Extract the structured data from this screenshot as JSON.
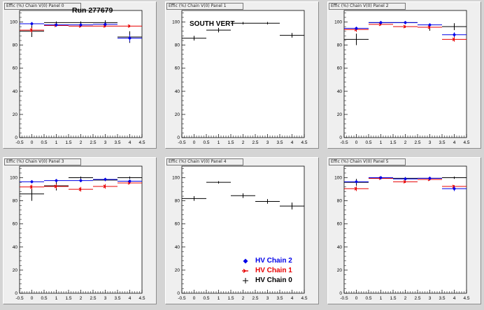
{
  "canvas_title": "Run 277679",
  "colors": {
    "chain2": "#0000e8",
    "chain1": "#e80000",
    "chain0": "#000000",
    "pad_bg": "#efefef",
    "canvas_bg": "#d4d4d4"
  },
  "legend": [
    {
      "label": "HV Chain 2",
      "color": "#0000e8",
      "marker": "diamond"
    },
    {
      "label": "HV Chain 1",
      "color": "#e80000",
      "marker": "arrow"
    },
    {
      "label": "HV Chain 0",
      "color": "#000000",
      "marker": "cross"
    }
  ],
  "chart_data": [
    {
      "type": "scatter",
      "title": "Run 277679",
      "pad_title": "Effic (%) Chain V(0) Panel 0",
      "xlim": [
        -0.5,
        4.5
      ],
      "ylim": [
        0,
        110
      ],
      "xticks": [
        "-0.5",
        "0",
        "0.5",
        "1",
        "1.5",
        "2",
        "2.5",
        "3",
        "3.5",
        "4",
        "4.5"
      ],
      "yticks": [
        "0",
        "20",
        "40",
        "60",
        "80",
        "100"
      ],
      "x": [
        0,
        1,
        2,
        3,
        4
      ],
      "series": [
        {
          "name": "HV Chain 2",
          "y": [
            98.5,
            97.5,
            97.5,
            98,
            86
          ],
          "yerr": [
            1,
            1,
            1,
            1,
            3
          ]
        },
        {
          "name": "HV Chain 1",
          "y": [
            93,
            97,
            96.5,
            96.5,
            96.5
          ],
          "yerr": [
            2,
            1,
            1,
            1,
            1
          ]
        },
        {
          "name": "HV Chain 0",
          "y": [
            92,
            99.5,
            99.5,
            99.5,
            87
          ],
          "yerr": [
            5,
            1,
            1,
            2,
            5
          ]
        }
      ]
    },
    {
      "type": "scatter",
      "title": "SOUTH VERT",
      "pad_title": "Effic (%) Chain V(0) Panel 1",
      "xlim": [
        -0.5,
        4.5
      ],
      "ylim": [
        0,
        110
      ],
      "xticks": [
        "-0.5",
        "0",
        "0.5",
        "1",
        "1.5",
        "2",
        "2.5",
        "3",
        "3.5",
        "4",
        "4.5"
      ],
      "yticks": [
        "0",
        "20",
        "40",
        "60",
        "80",
        "100"
      ],
      "x": [
        0,
        1,
        2,
        3,
        4
      ],
      "series": [
        {
          "name": "HV Chain 0",
          "y": [
            86,
            93,
            99,
            99,
            88.5
          ],
          "yerr": [
            2,
            2,
            1,
            1,
            2
          ]
        }
      ]
    },
    {
      "type": "scatter",
      "pad_title": "Effic (%) Chain V(0) Panel 2",
      "xlim": [
        -0.5,
        4.5
      ],
      "ylim": [
        0,
        110
      ],
      "xticks": [
        "-0.5",
        "0",
        "0.5",
        "1",
        "1.5",
        "2",
        "2.5",
        "3",
        "3.5",
        "4",
        "4.5"
      ],
      "yticks": [
        "0",
        "20",
        "40",
        "60",
        "80",
        "100"
      ],
      "x": [
        0,
        1,
        2,
        3,
        4
      ],
      "series": [
        {
          "name": "HV Chain 2",
          "y": [
            94.5,
            99.5,
            99.5,
            97.5,
            89
          ],
          "yerr": [
            1,
            1,
            1,
            1,
            2
          ]
        },
        {
          "name": "HV Chain 1",
          "y": [
            93.5,
            98,
            96,
            95.5,
            85
          ],
          "yerr": [
            2,
            1,
            1,
            1,
            2
          ]
        },
        {
          "name": "HV Chain 0",
          "y": [
            85,
            99.5,
            99.5,
            95.5,
            96
          ],
          "yerr": [
            5,
            1,
            1,
            3,
            3
          ]
        }
      ]
    },
    {
      "type": "scatter",
      "pad_title": "Effic (%) Chain V(0) Panel 3",
      "xlim": [
        -0.5,
        4.5
      ],
      "ylim": [
        0,
        110
      ],
      "xticks": [
        "-0.5",
        "0",
        "0.5",
        "1",
        "1.5",
        "2",
        "2.5",
        "3",
        "3.5",
        "4",
        "4.5"
      ],
      "yticks": [
        "0",
        "20",
        "40",
        "60",
        "80",
        "100"
      ],
      "x": [
        0,
        1,
        2,
        3,
        4
      ],
      "series": [
        {
          "name": "HV Chain 2",
          "y": [
            96.5,
            97.5,
            97.5,
            98.5,
            97
          ],
          "yerr": [
            1,
            1,
            1,
            1,
            1
          ]
        },
        {
          "name": "HV Chain 1",
          "y": [
            92,
            92.5,
            90,
            92.5,
            95.5
          ],
          "yerr": [
            2,
            2,
            2,
            2,
            1
          ]
        },
        {
          "name": "HV Chain 0",
          "y": [
            86,
            93,
            100,
            98,
            100
          ],
          "yerr": [
            6,
            4,
            1,
            1,
            1
          ]
        }
      ]
    },
    {
      "type": "scatter",
      "pad_title": "Effic (%) Chain V(0) Panel 4",
      "xlim": [
        -0.5,
        4.5
      ],
      "ylim": [
        0,
        110
      ],
      "xticks": [
        "-0.5",
        "0",
        "0.5",
        "1",
        "1.5",
        "2",
        "2.5",
        "3",
        "3.5",
        "4",
        "4.5"
      ],
      "yticks": [
        "0",
        "20",
        "40",
        "60",
        "80",
        "100"
      ],
      "x": [
        0,
        1,
        2,
        3,
        4
      ],
      "series": [
        {
          "name": "HV Chain 0",
          "y": [
            82,
            96,
            84.5,
            79.5,
            75.5
          ],
          "yerr": [
            2,
            1,
            2,
            2,
            3
          ]
        }
      ]
    },
    {
      "type": "scatter",
      "pad_title": "Effic (%) Chain V(0) Panel 5",
      "xlim": [
        -0.5,
        4.5
      ],
      "ylim": [
        0,
        110
      ],
      "xticks": [
        "-0.5",
        "0",
        "0.5",
        "1",
        "1.5",
        "2",
        "2.5",
        "3",
        "3.5",
        "4",
        "4.5"
      ],
      "yticks": [
        "0",
        "20",
        "40",
        "60",
        "80",
        "100"
      ],
      "x": [
        0,
        1,
        2,
        3,
        4
      ],
      "series": [
        {
          "name": "HV Chain 2",
          "y": [
            96.5,
            100,
            99,
            99.5,
            90.5
          ],
          "yerr": [
            1,
            1,
            1,
            1,
            2
          ]
        },
        {
          "name": "HV Chain 1",
          "y": [
            90.5,
            99.5,
            96.5,
            98.5,
            92.5
          ],
          "yerr": [
            2,
            1,
            1,
            1,
            1
          ]
        },
        {
          "name": "HV Chain 0",
          "y": [
            96,
            99.5,
            99.5,
            99.5,
            100
          ],
          "yerr": [
            3,
            1,
            1,
            1,
            1
          ]
        }
      ]
    }
  ]
}
